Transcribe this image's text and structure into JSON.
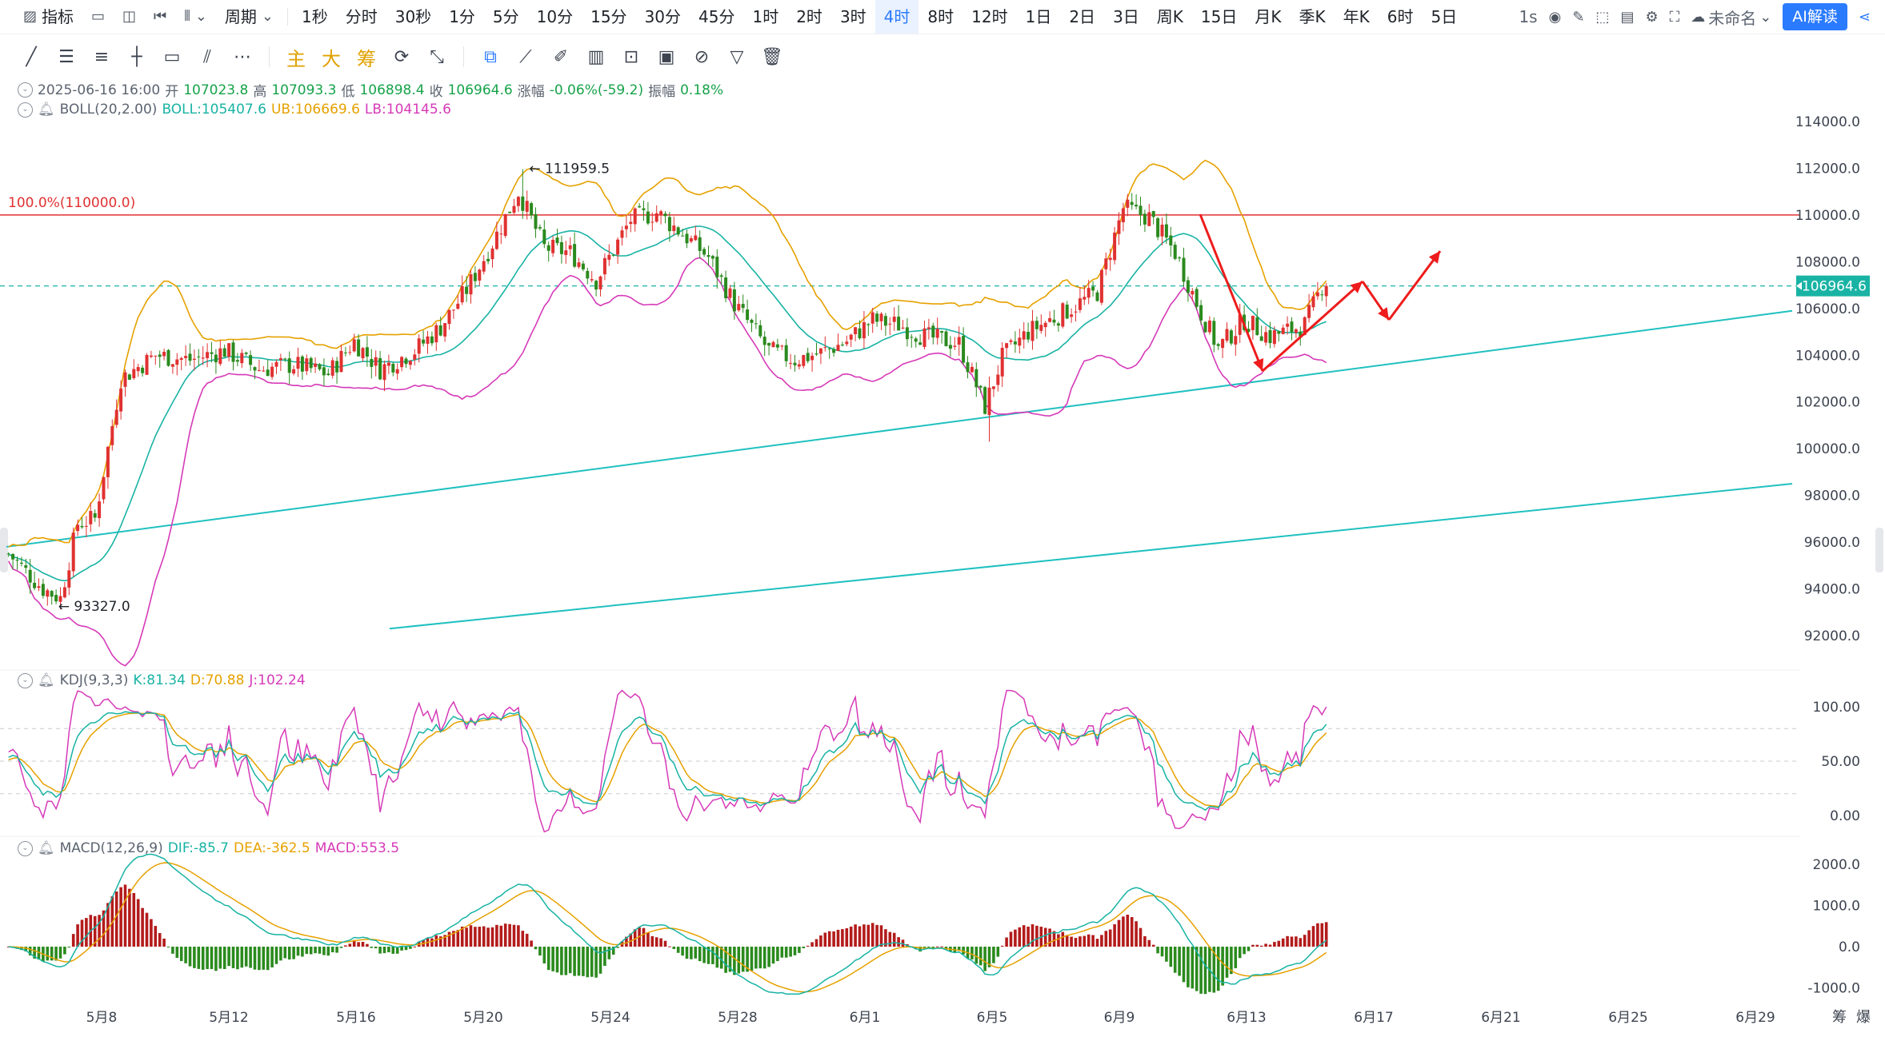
{
  "toolbar": {
    "indicator_label": "指标",
    "period_label": "周期",
    "timeframes": [
      "1秒",
      "分时",
      "30秒",
      "1分",
      "5分",
      "10分",
      "15分",
      "30分",
      "45分",
      "1时",
      "2时",
      "3时",
      "4时",
      "8时",
      "12时",
      "1日",
      "2日",
      "3日",
      "周K",
      "15日",
      "月K",
      "季K",
      "年K",
      "6时",
      "5日"
    ],
    "active_timeframe": "4时",
    "interval_readout": "1s",
    "layout_name": "未命名",
    "ai_button": "AI解读"
  },
  "drawing_tools": {
    "main_label": "主",
    "big_label": "大",
    "chip_label": "筹"
  },
  "legend": {
    "date": "2025-06-16 16:00",
    "open_label": "开",
    "open": "107023.8",
    "high_label": "高",
    "high": "107093.3",
    "low_label": "低",
    "low": "106898.4",
    "close_label": "收",
    "close": "106964.6",
    "change_label": "涨幅",
    "change": "-0.06%(-59.2)",
    "amplitude_label": "振幅",
    "amplitude": "0.18%",
    "boll_name": "BOLL(20,2.00)",
    "boll_mid": "BOLL:105407.6",
    "boll_ub": "UB:106669.6",
    "boll_lb": "LB:104145.6",
    "kdj_name": "KDJ(9,3,3)",
    "kdj_k": "K:81.34",
    "kdj_d": "D:70.88",
    "kdj_j": "J:102.24",
    "macd_name": "MACD(12,26,9)",
    "macd_dif": "DIF:-85.7",
    "macd_dea": "DEA:-362.5",
    "macd_hist": "MACD:553.5"
  },
  "annotations": {
    "fib_label": "100.0%(110000.0)",
    "high_marker": "111959.5",
    "low_marker": "93327.0",
    "current_price": "106964.6"
  },
  "colors": {
    "up": "#e03131",
    "down": "#2b8a1e",
    "boll_mid": "#18b3a4",
    "boll_ub": "#e6a100",
    "boll_lb": "#d63ab8",
    "trendline": "#20c0c0",
    "fib_line": "#e03131",
    "arrow": "#ee1c1c",
    "price_tag": "#18b3a4"
  },
  "chart_data": {
    "type": "candlestick",
    "price_axis": {
      "min": 92000,
      "max": 114000,
      "ticks": [
        "114000.0",
        "112000.0",
        "110000.0",
        "108000.0",
        "106000.0",
        "104000.0",
        "102000.0",
        "100000.0",
        "98000.0",
        "96000.0",
        "94000.0",
        "92000.0"
      ]
    },
    "kdj_axis": {
      "ticks": [
        "100.00",
        "50.00",
        "0.00"
      ]
    },
    "macd_axis": {
      "ticks": [
        "2000.0",
        "1000.0",
        "0.0",
        "-1000.0"
      ]
    },
    "x_ticks": [
      "5月8",
      "5月12",
      "5月16",
      "5月20",
      "5月24",
      "5月28",
      "6月1",
      "6月5",
      "6月9",
      "6月13",
      "6月17",
      "6月21",
      "6月25",
      "6月29"
    ],
    "close_keypoints": [
      [
        0,
        95500
      ],
      [
        8,
        94000
      ],
      [
        12,
        93600
      ],
      [
        16,
        96800
      ],
      [
        20,
        97000
      ],
      [
        26,
        103000
      ],
      [
        34,
        104000
      ],
      [
        42,
        103800
      ],
      [
        50,
        104200
      ],
      [
        58,
        103400
      ],
      [
        66,
        103600
      ],
      [
        74,
        103200
      ],
      [
        80,
        104600
      ],
      [
        86,
        103400
      ],
      [
        94,
        104200
      ],
      [
        100,
        105200
      ],
      [
        106,
        106800
      ],
      [
        112,
        108800
      ],
      [
        118,
        111000
      ],
      [
        124,
        108600
      ],
      [
        130,
        108400
      ],
      [
        136,
        107200
      ],
      [
        144,
        109800
      ],
      [
        150,
        110100
      ],
      [
        156,
        109200
      ],
      [
        162,
        108200
      ],
      [
        168,
        106200
      ],
      [
        176,
        104200
      ],
      [
        182,
        103800
      ],
      [
        188,
        104100
      ],
      [
        194,
        104600
      ],
      [
        200,
        105500
      ],
      [
        206,
        105300
      ],
      [
        212,
        104800
      ],
      [
        220,
        104500
      ],
      [
        226,
        101800
      ],
      [
        230,
        103900
      ],
      [
        236,
        105000
      ],
      [
        244,
        105800
      ],
      [
        252,
        106700
      ],
      [
        258,
        110300
      ],
      [
        264,
        109900
      ],
      [
        270,
        108400
      ],
      [
        276,
        105800
      ],
      [
        280,
        104300
      ],
      [
        286,
        105500
      ],
      [
        292,
        104800
      ],
      [
        300,
        105300
      ],
      [
        304,
        106964
      ]
    ],
    "last_close": 106964.6
  }
}
